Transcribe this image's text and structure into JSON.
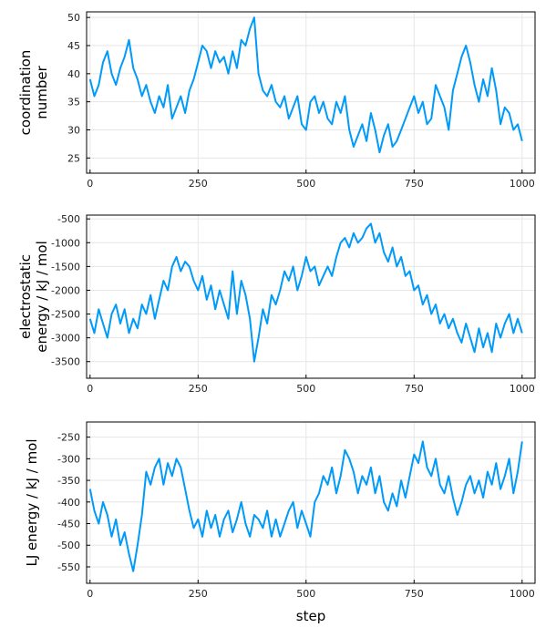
{
  "series_color": "#009af9",
  "chart_data": [
    {
      "type": "line",
      "xlabel": "",
      "ylabel": [
        "coordination",
        "number"
      ],
      "xlim": [
        -8,
        1030
      ],
      "ylim": [
        22.3,
        51
      ],
      "xticks": [
        0,
        250,
        500,
        750,
        1000
      ],
      "yticks": [
        25,
        30,
        35,
        40,
        45,
        50
      ],
      "grid": true,
      "x": [
        0,
        10,
        20,
        30,
        40,
        50,
        60,
        70,
        80,
        90,
        100,
        110,
        120,
        130,
        140,
        150,
        160,
        170,
        180,
        190,
        200,
        210,
        220,
        230,
        240,
        250,
        260,
        270,
        280,
        290,
        300,
        310,
        320,
        330,
        340,
        350,
        360,
        370,
        380,
        390,
        400,
        410,
        420,
        430,
        440,
        450,
        460,
        470,
        480,
        490,
        500,
        510,
        520,
        530,
        540,
        550,
        560,
        570,
        580,
        590,
        600,
        610,
        620,
        630,
        640,
        650,
        660,
        670,
        680,
        690,
        700,
        710,
        720,
        730,
        740,
        750,
        760,
        770,
        780,
        790,
        800,
        810,
        820,
        830,
        840,
        850,
        860,
        870,
        880,
        890,
        900,
        910,
        920,
        930,
        940,
        950,
        960,
        970,
        980,
        990,
        1000
      ],
      "y": [
        39,
        36,
        38,
        42,
        44,
        40,
        38,
        41,
        43,
        46,
        41,
        39,
        36,
        38,
        35,
        33,
        36,
        34,
        38,
        32,
        34,
        36,
        33,
        37,
        39,
        42,
        45,
        44,
        41,
        44,
        42,
        43,
        40,
        44,
        41,
        46,
        45,
        48,
        50,
        40,
        37,
        36,
        38,
        35,
        34,
        36,
        32,
        34,
        36,
        31,
        30,
        35,
        36,
        33,
        35,
        32,
        31,
        35,
        33,
        36,
        30,
        27,
        29,
        31,
        28,
        33,
        30,
        26,
        29,
        31,
        27,
        28,
        30,
        32,
        34,
        36,
        33,
        35,
        31,
        32,
        38,
        36,
        34,
        30,
        37,
        40,
        43,
        45,
        42,
        38,
        35,
        39,
        36,
        41,
        37,
        31,
        34,
        33,
        30,
        31,
        28
      ]
    },
    {
      "type": "line",
      "xlabel": "",
      "ylabel": [
        "electrostatic",
        "energy / kJ / mol"
      ],
      "xlim": [
        -8,
        1030
      ],
      "ylim": [
        -3850,
        -420
      ],
      "xticks": [
        0,
        250,
        500,
        750,
        1000
      ],
      "yticks": [
        -3500,
        -3000,
        -2500,
        -2000,
        -1500,
        -1000,
        -500
      ],
      "grid": true,
      "x": [
        0,
        10,
        20,
        30,
        40,
        50,
        60,
        70,
        80,
        90,
        100,
        110,
        120,
        130,
        140,
        150,
        160,
        170,
        180,
        190,
        200,
        210,
        220,
        230,
        240,
        250,
        260,
        270,
        280,
        290,
        300,
        310,
        320,
        330,
        340,
        350,
        360,
        370,
        380,
        390,
        400,
        410,
        420,
        430,
        440,
        450,
        460,
        470,
        480,
        490,
        500,
        510,
        520,
        530,
        540,
        550,
        560,
        570,
        580,
        590,
        600,
        610,
        620,
        630,
        640,
        650,
        660,
        670,
        680,
        690,
        700,
        710,
        720,
        730,
        740,
        750,
        760,
        770,
        780,
        790,
        800,
        810,
        820,
        830,
        840,
        850,
        860,
        870,
        880,
        890,
        900,
        910,
        920,
        930,
        940,
        950,
        960,
        970,
        980,
        990,
        1000
      ],
      "y": [
        -2600,
        -2900,
        -2400,
        -2700,
        -3000,
        -2500,
        -2300,
        -2700,
        -2400,
        -2900,
        -2600,
        -2800,
        -2300,
        -2500,
        -2100,
        -2600,
        -2200,
        -1800,
        -2000,
        -1500,
        -1300,
        -1600,
        -1400,
        -1500,
        -1800,
        -2000,
        -1700,
        -2200,
        -1900,
        -2400,
        -2000,
        -2300,
        -2600,
        -1600,
        -2500,
        -1800,
        -2100,
        -2600,
        -3500,
        -3000,
        -2400,
        -2700,
        -2100,
        -2300,
        -2000,
        -1600,
        -1800,
        -1500,
        -2000,
        -1700,
        -1300,
        -1600,
        -1500,
        -1900,
        -1700,
        -1500,
        -1700,
        -1300,
        -1000,
        -900,
        -1100,
        -800,
        -1000,
        -900,
        -700,
        -600,
        -1000,
        -800,
        -1200,
        -1400,
        -1100,
        -1500,
        -1300,
        -1700,
        -1600,
        -2000,
        -1900,
        -2300,
        -2100,
        -2500,
        -2300,
        -2700,
        -2500,
        -2800,
        -2600,
        -2900,
        -3100,
        -2700,
        -3000,
        -3300,
        -2800,
        -3200,
        -2900,
        -3300,
        -2700,
        -3000,
        -2700,
        -2500,
        -2900,
        -2600,
        -2900
      ]
    },
    {
      "type": "line",
      "xlabel": "step",
      "ylabel": [
        "LJ energy / kJ / mol"
      ],
      "xlim": [
        -8,
        1030
      ],
      "ylim": [
        -588,
        -215
      ],
      "xticks": [
        0,
        250,
        500,
        750,
        1000
      ],
      "yticks": [
        -550,
        -500,
        -450,
        -400,
        -350,
        -300,
        -250
      ],
      "grid": true,
      "x": [
        0,
        10,
        20,
        30,
        40,
        50,
        60,
        70,
        80,
        90,
        100,
        110,
        120,
        130,
        140,
        150,
        160,
        170,
        180,
        190,
        200,
        210,
        220,
        230,
        240,
        250,
        260,
        270,
        280,
        290,
        300,
        310,
        320,
        330,
        340,
        350,
        360,
        370,
        380,
        390,
        400,
        410,
        420,
        430,
        440,
        450,
        460,
        470,
        480,
        490,
        500,
        510,
        520,
        530,
        540,
        550,
        560,
        570,
        580,
        590,
        600,
        610,
        620,
        630,
        640,
        650,
        660,
        670,
        680,
        690,
        700,
        710,
        720,
        730,
        740,
        750,
        760,
        770,
        780,
        790,
        800,
        810,
        820,
        830,
        840,
        850,
        860,
        870,
        880,
        890,
        900,
        910,
        920,
        930,
        940,
        950,
        960,
        970,
        980,
        990,
        1000
      ],
      "y": [
        -370,
        -420,
        -450,
        -400,
        -430,
        -480,
        -440,
        -500,
        -470,
        -520,
        -560,
        -500,
        -430,
        -330,
        -360,
        -320,
        -300,
        -360,
        -310,
        -340,
        -300,
        -320,
        -370,
        -420,
        -460,
        -440,
        -480,
        -420,
        -460,
        -430,
        -480,
        -440,
        -420,
        -470,
        -440,
        -400,
        -450,
        -480,
        -430,
        -440,
        -460,
        -420,
        -480,
        -440,
        -480,
        -450,
        -420,
        -400,
        -460,
        -420,
        -450,
        -480,
        -400,
        -380,
        -340,
        -360,
        -320,
        -380,
        -340,
        -280,
        -300,
        -330,
        -380,
        -340,
        -360,
        -320,
        -380,
        -340,
        -400,
        -420,
        -380,
        -410,
        -350,
        -390,
        -340,
        -290,
        -310,
        -260,
        -320,
        -340,
        -300,
        -360,
        -380,
        -340,
        -390,
        -430,
        -400,
        -360,
        -340,
        -380,
        -350,
        -390,
        -330,
        -360,
        -310,
        -370,
        -340,
        -300,
        -380,
        -330,
        -260
      ]
    }
  ]
}
